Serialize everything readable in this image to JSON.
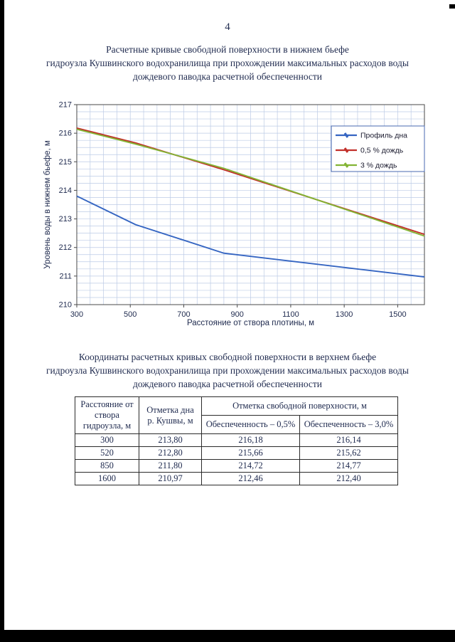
{
  "page": {
    "number": "4"
  },
  "chart_section": {
    "title_lines": [
      "Расчетные кривые свободной поверхности в нижнем бьефе",
      "гидроузла Кушвинского водохранилища при прохождении максимальных расходов воды",
      "дождевого паводка расчетной обеспеченности"
    ]
  },
  "chart_data": {
    "type": "line",
    "xlabel": "Расстояние от створа плотины, м",
    "ylabel": "Уровень воды в нижнем бьефе, м",
    "xlim": [
      300,
      1600
    ],
    "ylim": [
      210,
      217
    ],
    "x_ticks": [
      300,
      500,
      700,
      900,
      1100,
      1300,
      1500
    ],
    "y_ticks": [
      210,
      211,
      212,
      213,
      214,
      215,
      216,
      217
    ],
    "grid": "minor, x step 50 m, y step 0.25 m",
    "legend_position": "top-right",
    "series": [
      {
        "name": "Профиль дна",
        "color": "#3565c2",
        "x": [
          300,
          520,
          850,
          1600
        ],
        "y": [
          213.8,
          212.8,
          211.8,
          210.97
        ]
      },
      {
        "name": "0,5 % дождь",
        "color": "#c2302a",
        "x": [
          300,
          520,
          850,
          1600
        ],
        "y": [
          216.18,
          215.66,
          214.72,
          212.46
        ]
      },
      {
        "name": "3 % дождь",
        "color": "#83b434",
        "x": [
          300,
          520,
          850,
          1600
        ],
        "y": [
          216.14,
          215.62,
          214.77,
          212.4
        ]
      }
    ]
  },
  "table_section": {
    "title_lines": [
      "Координаты расчетных кривых свободной поверхности в верхнем бьефе",
      "гидроузла Кушвинского водохранилища при прохождении максимальных расходов воды",
      "дождевого паводка расчетной обеспеченности"
    ],
    "table": {
      "col1_header": "Расстояние от створа гидроузла, м",
      "col2_header": "Отметка дна р. Кушвы, м",
      "group_header": "Отметка свободной поверхности, м",
      "sub_headers": [
        "Обеспеченность – 0,5%",
        "Обеспеченность – 3,0%"
      ],
      "rows": [
        [
          "300",
          "213,80",
          "216,18",
          "216,14"
        ],
        [
          "520",
          "212,80",
          "215,66",
          "215,62"
        ],
        [
          "850",
          "211,80",
          "214,72",
          "214,77"
        ],
        [
          "1600",
          "210,97",
          "212,46",
          "212,40"
        ]
      ]
    }
  }
}
